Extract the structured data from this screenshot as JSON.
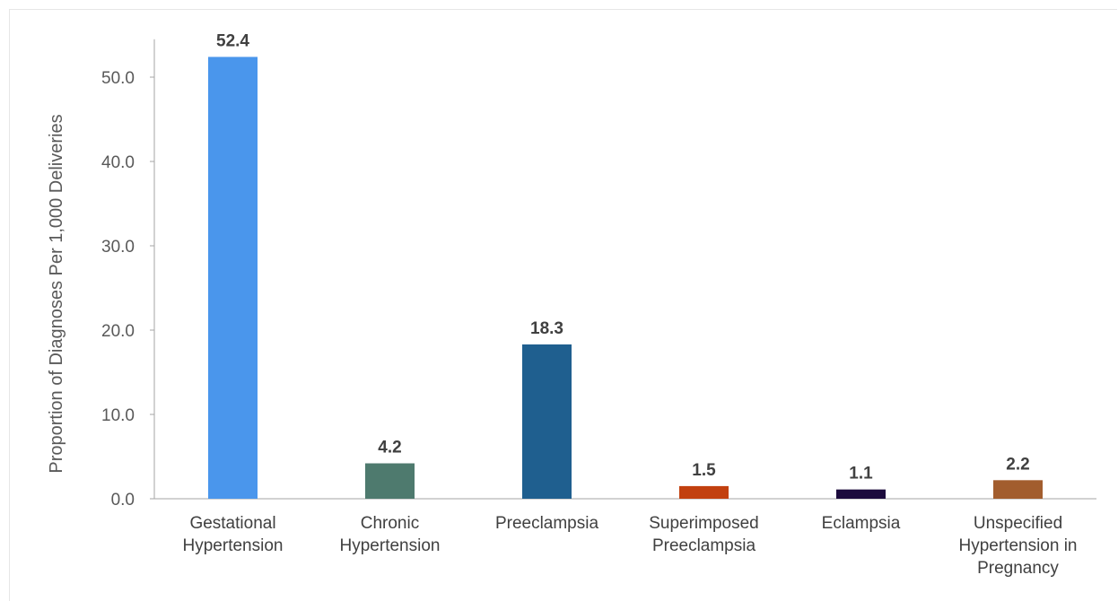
{
  "chart_data": {
    "type": "bar",
    "title": "",
    "xlabel": "",
    "ylabel": "Proportion of Diagnoses Per 1,000 Deliveries",
    "ylim": [
      0,
      55
    ],
    "yticks": [
      "0.0",
      "10.0",
      "20.0",
      "30.0",
      "40.0",
      "50.0"
    ],
    "ytick_values": [
      0,
      10,
      20,
      30,
      40,
      50
    ],
    "grid": false,
    "legend": "none",
    "categories": [
      [
        "Gestational",
        "Hypertension"
      ],
      [
        "Chronic",
        "Hypertension"
      ],
      [
        "Preeclampsia"
      ],
      [
        "Superimposed",
        "Preeclampsia"
      ],
      [
        "Eclampsia"
      ],
      [
        "Unspecified",
        "Hypertension in",
        "Pregnancy"
      ]
    ],
    "values": [
      52.4,
      4.2,
      18.3,
      1.5,
      1.1,
      2.2
    ],
    "value_labels": [
      "52.4",
      "4.2",
      "18.3",
      "1.5",
      "1.1",
      "2.2"
    ],
    "colors": [
      "#4a96ec",
      "#4e7a6e",
      "#1f5f8f",
      "#c2400f",
      "#1c0b3d",
      "#a25d2e"
    ]
  }
}
